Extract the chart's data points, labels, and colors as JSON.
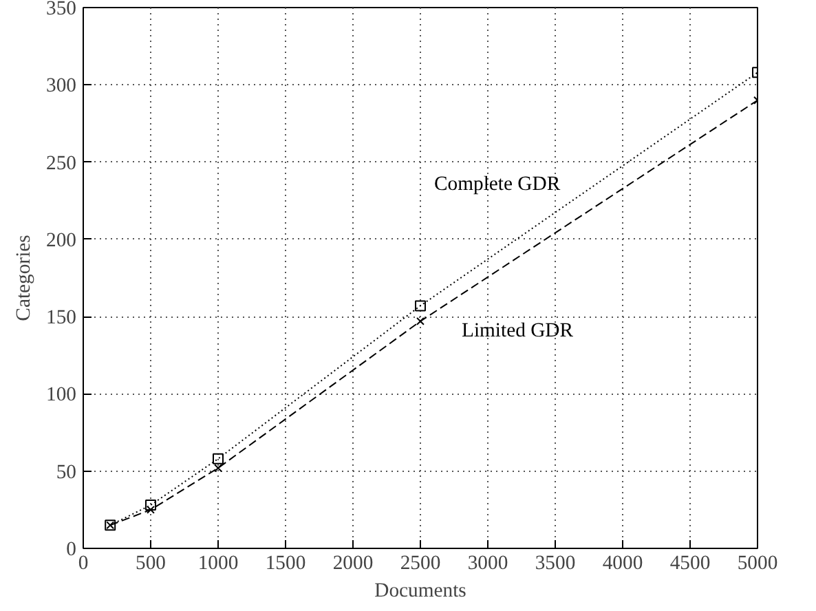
{
  "chart_data": {
    "type": "line",
    "xlabel": "Documents",
    "ylabel": "Categories",
    "x": [
      200,
      500,
      1000,
      2500,
      5000
    ],
    "series": [
      {
        "name": "Complete GDR",
        "color": "#000000",
        "values": [
          15,
          28,
          58,
          157,
          308
        ],
        "marker": "square",
        "line_style": "dotted"
      },
      {
        "name": "Limited GDR",
        "color": "#000000",
        "values": [
          15,
          25,
          52,
          147,
          290
        ],
        "marker": "cross",
        "line_style": "dashed"
      }
    ],
    "xlim": [
      0,
      5000
    ],
    "ylim": [
      0,
      350
    ],
    "xticks": [
      0,
      500,
      1000,
      1500,
      2000,
      2500,
      3000,
      3500,
      4000,
      4500,
      5000
    ],
    "yticks": [
      0,
      50,
      100,
      150,
      200,
      250,
      300,
      350
    ],
    "grid": true
  }
}
